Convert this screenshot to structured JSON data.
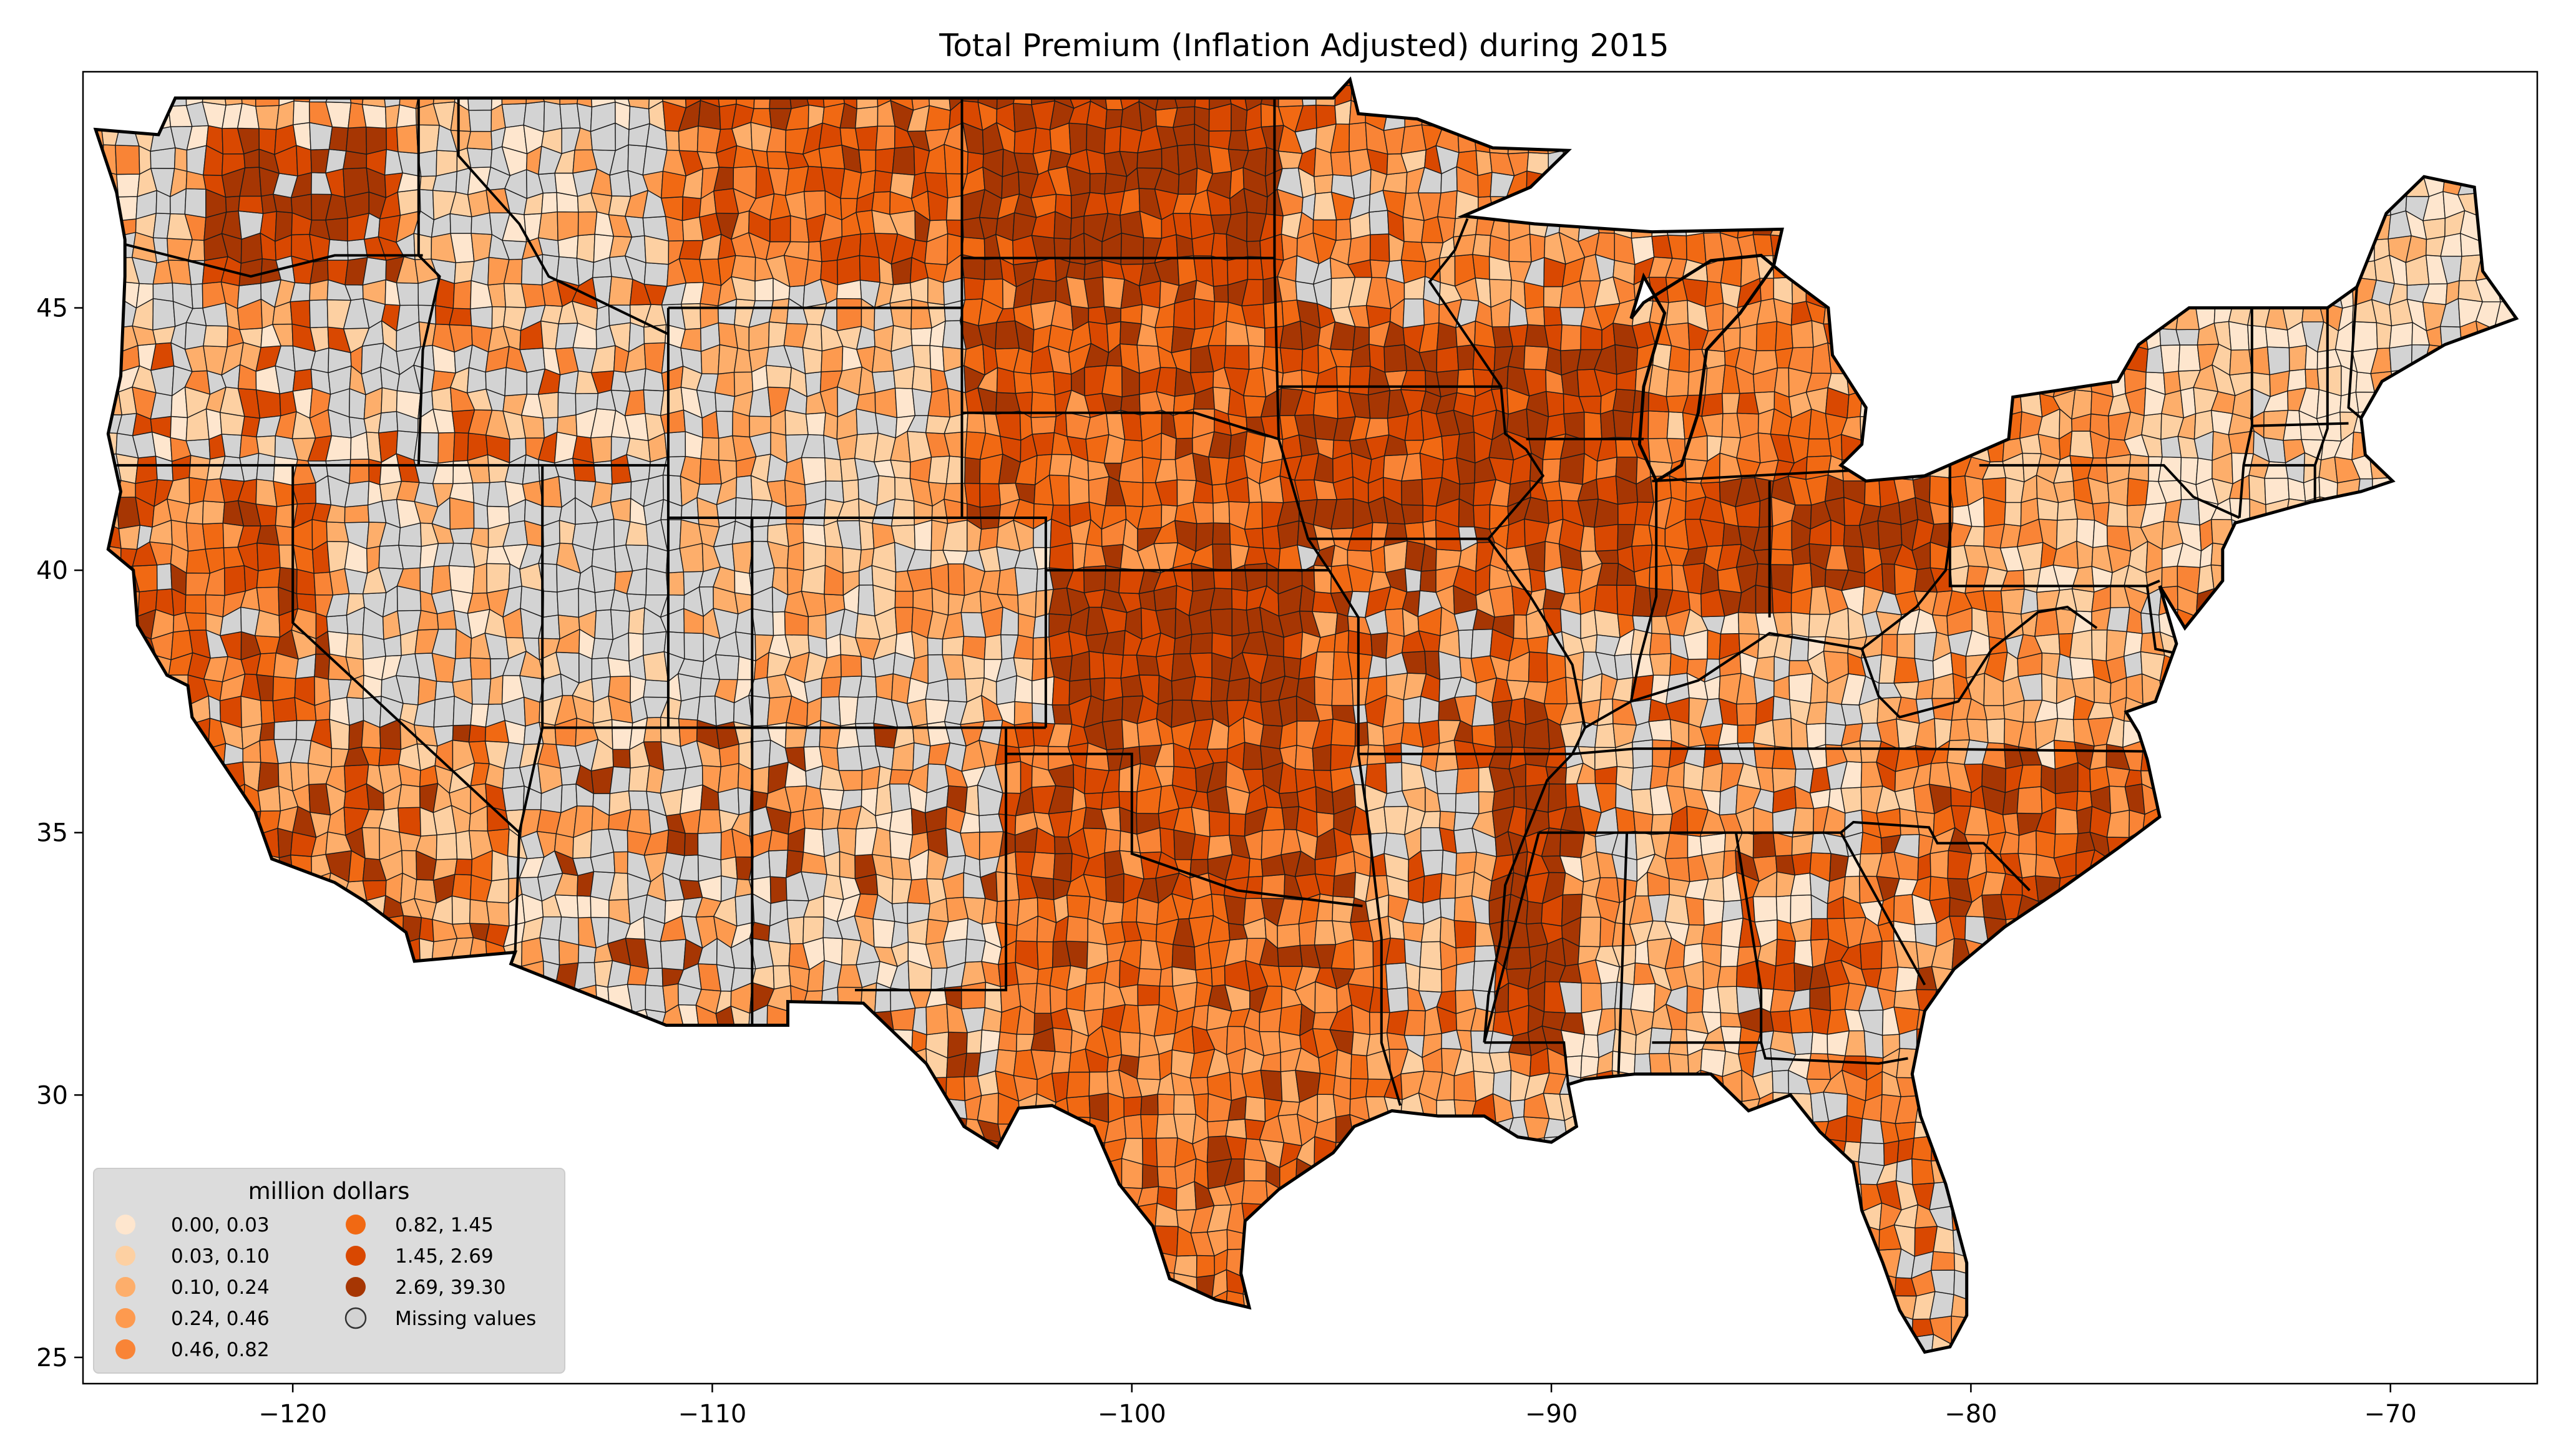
{
  "title": "Total  Premium  (Inflation Adjusted) during 2015",
  "axes": {
    "x_ticks": [
      {
        "value": -120,
        "label": "−120"
      },
      {
        "value": -110,
        "label": "−110"
      },
      {
        "value": -100,
        "label": "−100"
      },
      {
        "value": -90,
        "label": "−90"
      },
      {
        "value": -80,
        "label": "−80"
      },
      {
        "value": -70,
        "label": "−70"
      }
    ],
    "y_ticks": [
      {
        "value": 25,
        "label": "25"
      },
      {
        "value": 30,
        "label": "30"
      },
      {
        "value": 35,
        "label": "35"
      },
      {
        "value": 40,
        "label": "40"
      },
      {
        "value": 45,
        "label": "45"
      }
    ],
    "xlim": [
      -125,
      -66.5
    ],
    "ylim": [
      24.5,
      49.5
    ]
  },
  "legend": {
    "title": "million dollars",
    "placement": "lower-left",
    "items": [
      {
        "label": "0.00,  0.03",
        "color": "#fee6ce"
      },
      {
        "label": "0.03,  0.10",
        "color": "#fdd0a2"
      },
      {
        "label": "0.10,  0.24",
        "color": "#fdae6b"
      },
      {
        "label": "0.24,  0.46",
        "color": "#fd9a4f"
      },
      {
        "label": "0.46,  0.82",
        "color": "#f98436"
      },
      {
        "label": "0.82,  1.45",
        "color": "#f16913"
      },
      {
        "label": "1.45,  2.69",
        "color": "#d94801"
      },
      {
        "label": "2.69, 39.30",
        "color": "#a63603"
      },
      {
        "label": "Missing values",
        "color": "#d3d3d3"
      }
    ]
  },
  "colors": {
    "missing": "#d3d3d3",
    "state_border": "#000000",
    "county_border": "#1a1a1a"
  }
}
